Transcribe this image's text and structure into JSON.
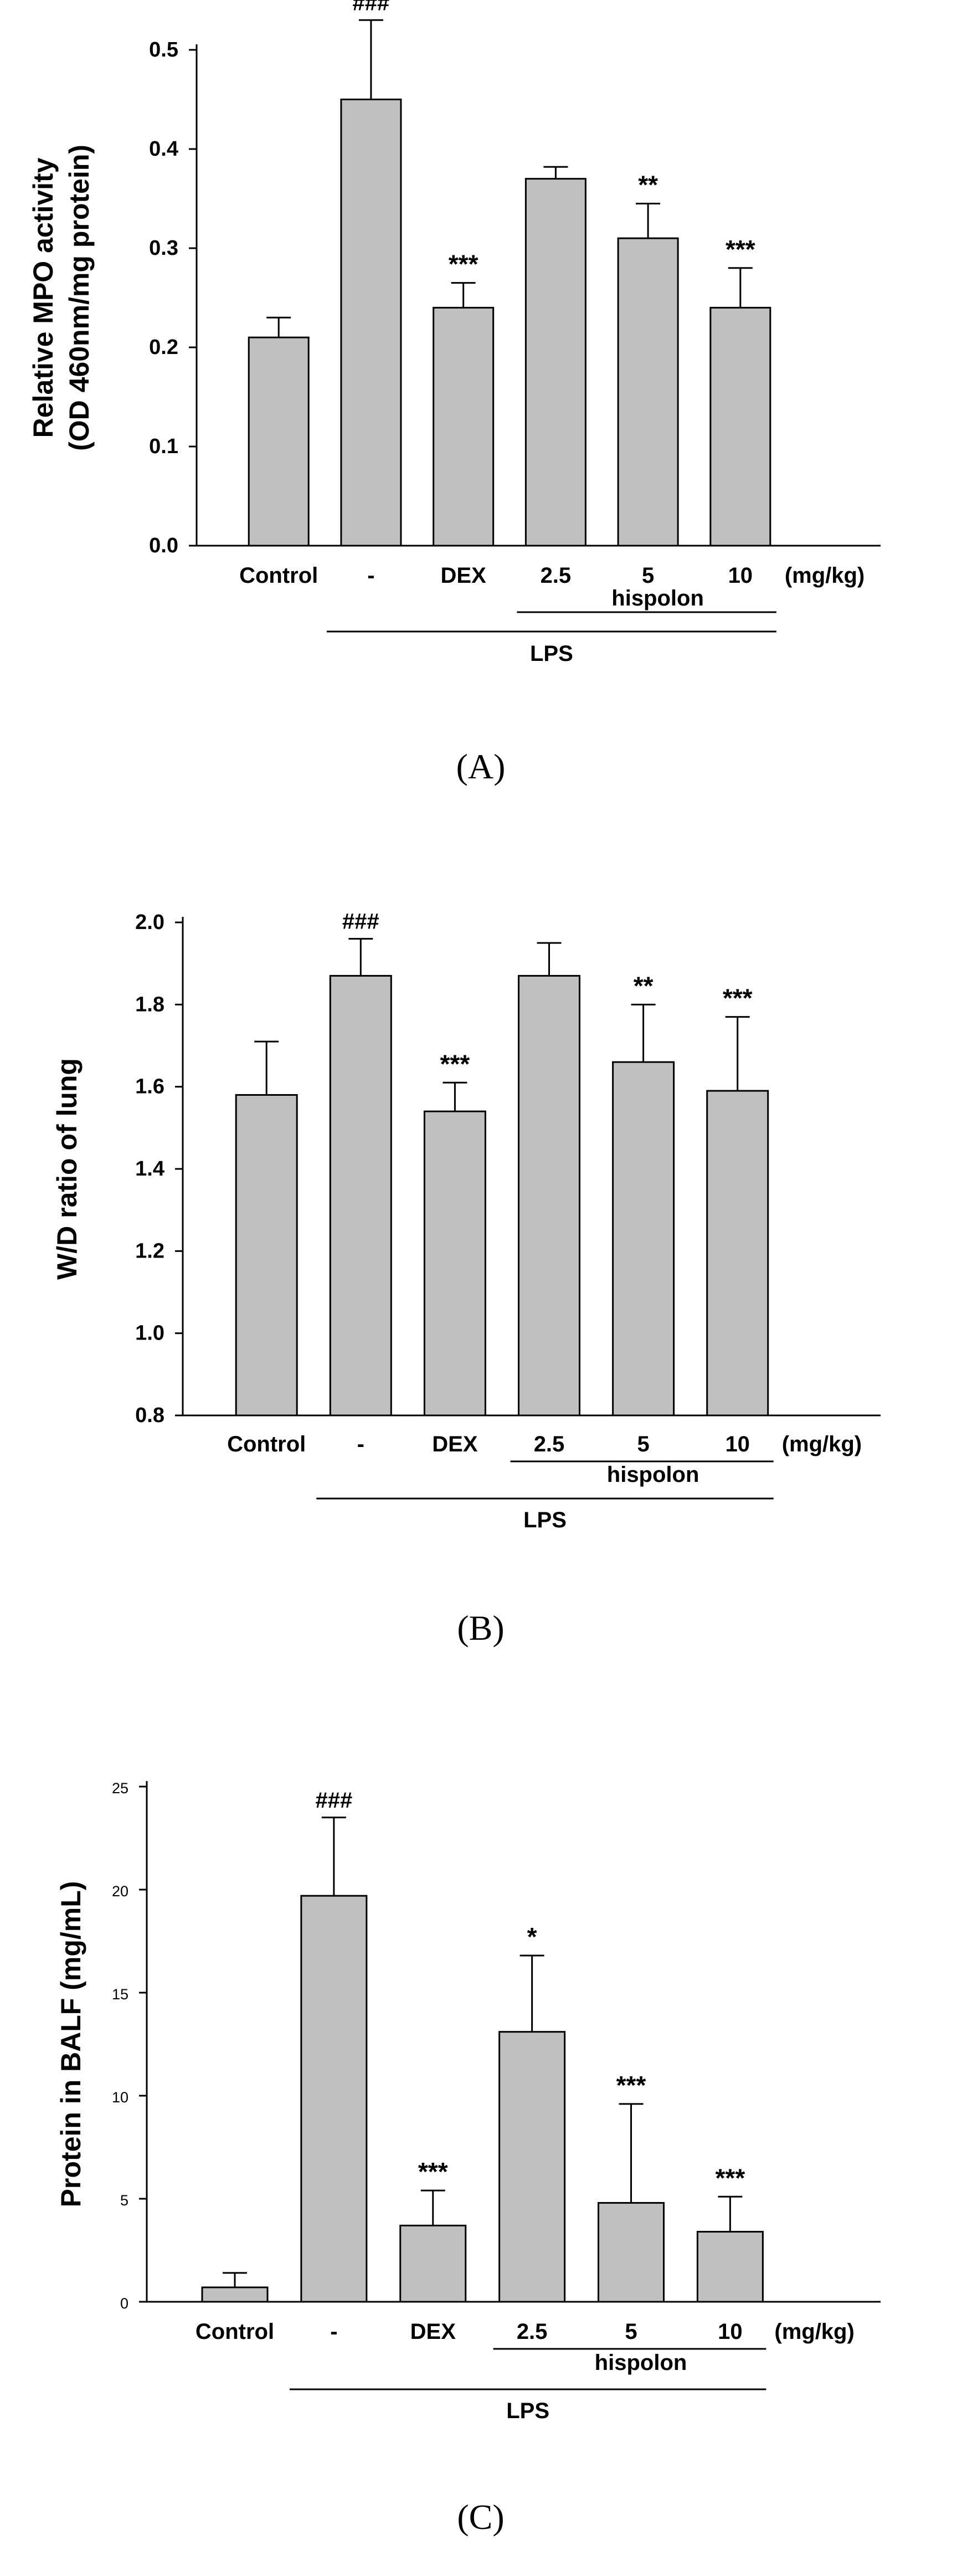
{
  "chart_data": [
    {
      "id": "A",
      "panel_label": "(A)",
      "type": "bar",
      "ylabel_lines": [
        "Relative MPO activity",
        "(OD 460nm/mg protein)"
      ],
      "ylim": [
        0,
        0.5
      ],
      "yticks": [
        "0.0",
        "0.1",
        "0.2",
        "0.3",
        "0.4",
        "0.5"
      ],
      "categories": [
        "Control",
        "-",
        "DEX",
        "2.5",
        "5",
        "10"
      ],
      "unit_label": "(mg/kg)",
      "values": [
        0.21,
        0.45,
        0.24,
        0.37,
        0.31,
        0.24
      ],
      "errors": [
        0.02,
        0.08,
        0.025,
        0.012,
        0.035,
        0.04
      ],
      "annotations": [
        "",
        "###",
        "***",
        "",
        "**",
        "***"
      ],
      "group_labels": {
        "hispolon": "hispolon",
        "lps": "LPS"
      }
    },
    {
      "id": "B",
      "panel_label": "(B)",
      "type": "bar",
      "ylabel_lines": [
        "W/D ratio of lung"
      ],
      "ylim": [
        0.8,
        2.0
      ],
      "yticks": [
        "0.8",
        "1.0",
        "1.2",
        "1.4",
        "1.6",
        "1.8",
        "2.0"
      ],
      "categories": [
        "Control",
        "-",
        "DEX",
        "2.5",
        "5",
        "10"
      ],
      "unit_label": "(mg/kg)",
      "values": [
        1.58,
        1.87,
        1.54,
        1.87,
        1.66,
        1.59
      ],
      "errors": [
        0.13,
        0.09,
        0.07,
        0.08,
        0.14,
        0.18
      ],
      "annotations": [
        "",
        "###",
        "***",
        "",
        "**",
        "***"
      ],
      "group_labels": {
        "hispolon": "hispolon",
        "lps": "LPS"
      }
    },
    {
      "id": "C",
      "panel_label": "(C)",
      "type": "bar",
      "ylabel_lines": [
        "Protein in BALF (mg/mL)"
      ],
      "ylim": [
        0,
        25
      ],
      "yticks": [
        "0",
        "5",
        "10",
        "15",
        "20",
        "25"
      ],
      "categories": [
        "Control",
        "-",
        "DEX",
        "2.5",
        "5",
        "10"
      ],
      "unit_label": "(mg/kg)",
      "values": [
        0.7,
        19.7,
        3.7,
        13.1,
        4.8,
        3.4
      ],
      "errors": [
        0.7,
        3.8,
        1.7,
        3.7,
        4.8,
        1.7
      ],
      "annotations": [
        "",
        "###",
        "***",
        "*",
        "***",
        "***"
      ],
      "group_labels": {
        "hispolon": "hispolon",
        "lps": "LPS"
      }
    }
  ]
}
